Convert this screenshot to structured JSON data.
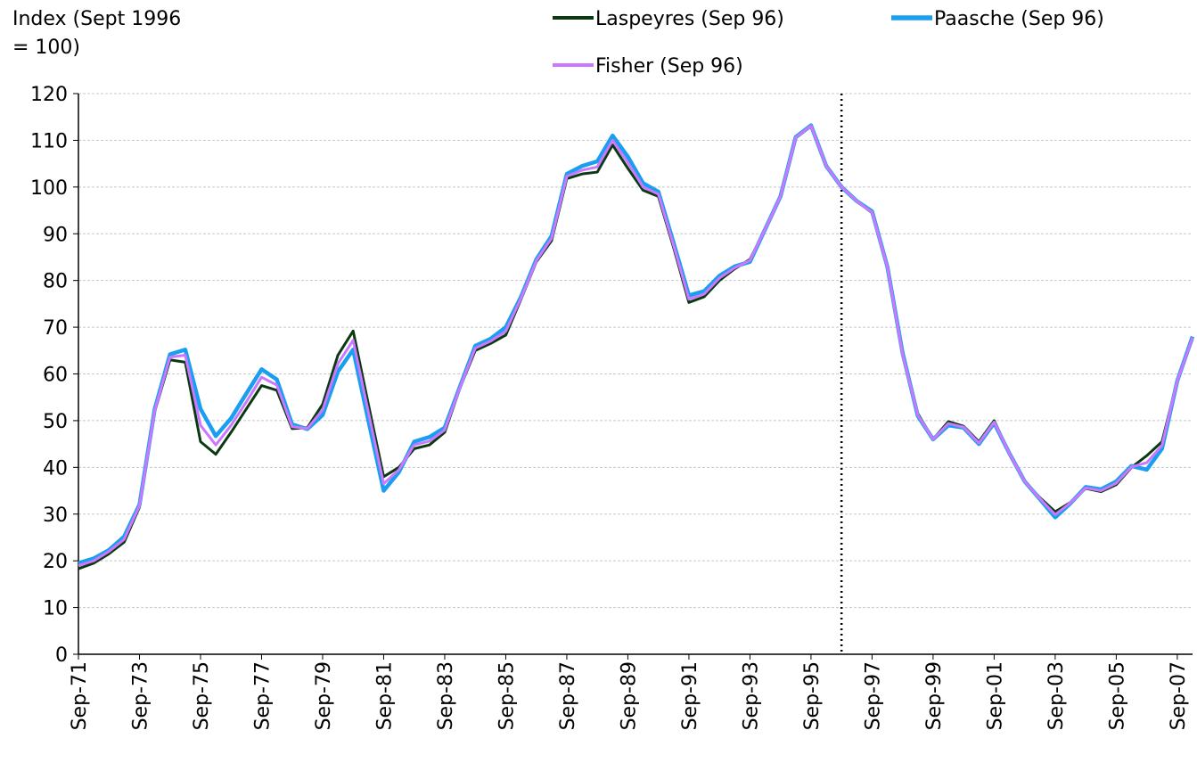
{
  "chart_data": {
    "type": "line",
    "y_axis_label": "Index (Sept 1996 = 100)",
    "categories": [
      "Sep-71",
      null,
      null,
      null,
      "Sep-73",
      null,
      null,
      null,
      "Sep-75",
      null,
      null,
      null,
      "Sep-77",
      null,
      null,
      null,
      "Sep-79",
      null,
      null,
      null,
      "Sep-81",
      null,
      null,
      null,
      "Sep-83",
      null,
      null,
      null,
      "Sep-85",
      null,
      null,
      null,
      "Sep-87",
      null,
      null,
      null,
      "Sep-89",
      null,
      null,
      null,
      "Sep-91",
      null,
      null,
      null,
      "Sep-93",
      null,
      null,
      null,
      "Sep-95",
      null,
      null,
      null,
      "Sep-97",
      null,
      null,
      null,
      "Sep-99",
      null,
      null,
      null,
      "Sep-01",
      null,
      null,
      null,
      "Sep-03",
      null,
      null,
      null,
      "Sep-05",
      null,
      null,
      null,
      "Sep-07",
      null
    ],
    "series": [
      {
        "name": "Laspeyres (Sep 96)",
        "color": "#0b3a12",
        "values": [
          18.3,
          19.5,
          21.5,
          24,
          31.5,
          52,
          63,
          62.5,
          45.5,
          42.8,
          47.5,
          52.5,
          57.5,
          56.5,
          48.3,
          48.5,
          53.5,
          64,
          69.2,
          53.5,
          38,
          40,
          44,
          44.8,
          47.5,
          57,
          65,
          66.5,
          68.3,
          76,
          84,
          88.5,
          101.8,
          102.8,
          103.2,
          109,
          104,
          99.3,
          98,
          87,
          75.3,
          76.5,
          80,
          82.5,
          84.5,
          91,
          98,
          110.5,
          113,
          104.5,
          100,
          97,
          94.5,
          83,
          64,
          51.5,
          46,
          49.8,
          48.8,
          45.5,
          50,
          43,
          37,
          33.5,
          30.5,
          32.5,
          35.5,
          34.8,
          36.3,
          40,
          42.5,
          45.5,
          58.5,
          67.5
        ]
      },
      {
        "name": "Paasche (Sep 96)",
        "color": "#1a9ff0",
        "values": [
          19.5,
          20.5,
          22.3,
          25.2,
          32,
          52.5,
          64.2,
          65.2,
          52.5,
          46.7,
          50.5,
          55.8,
          61,
          58.8,
          49.2,
          48.2,
          51.2,
          60.5,
          65.2,
          50,
          35,
          39,
          45.5,
          46.5,
          48.5,
          57.3,
          66,
          67.5,
          70,
          76.5,
          84.5,
          89.5,
          102.8,
          104.5,
          105.5,
          111,
          106.5,
          100.8,
          99,
          88,
          76.8,
          77.7,
          81,
          83,
          84,
          91,
          98,
          110.7,
          113.2,
          104.5,
          100,
          97,
          94.8,
          83,
          64.5,
          51,
          46,
          49,
          48.5,
          45,
          49.5,
          43,
          37,
          33.2,
          29.3,
          32.3,
          35.8,
          35.3,
          37,
          40.3,
          39.5,
          44,
          58.5,
          68
        ]
      },
      {
        "name": "Fisher (Sep 96)",
        "color": "#cc77ff",
        "values": [
          19,
          20,
          22,
          24.6,
          31.8,
          52.2,
          63.6,
          64,
          49,
          44.8,
          49,
          54,
          59.3,
          57.6,
          48.7,
          48.3,
          52.3,
          62.2,
          67.2,
          51.8,
          36.5,
          39.5,
          44.8,
          45.6,
          48,
          57.1,
          65.5,
          67,
          69.1,
          76.2,
          84.2,
          89,
          102.3,
          103.6,
          104.3,
          110,
          105.2,
          100,
          98.5,
          87.5,
          76,
          77.1,
          80.5,
          82.7,
          84.3,
          91,
          98,
          110.6,
          113.1,
          104.5,
          100,
          97,
          94.6,
          83,
          64.2,
          51.2,
          46,
          49.4,
          48.6,
          45.2,
          49.7,
          43,
          37,
          33.3,
          29.9,
          32.4,
          35.6,
          35,
          36.6,
          40.1,
          41,
          44.7,
          58.5,
          67.8
        ]
      }
    ],
    "ylim": [
      0,
      120
    ],
    "yticks": [
      0,
      10,
      20,
      30,
      40,
      50,
      60,
      70,
      80,
      90,
      100,
      110,
      120
    ],
    "grid": true,
    "legend": "top"
  }
}
